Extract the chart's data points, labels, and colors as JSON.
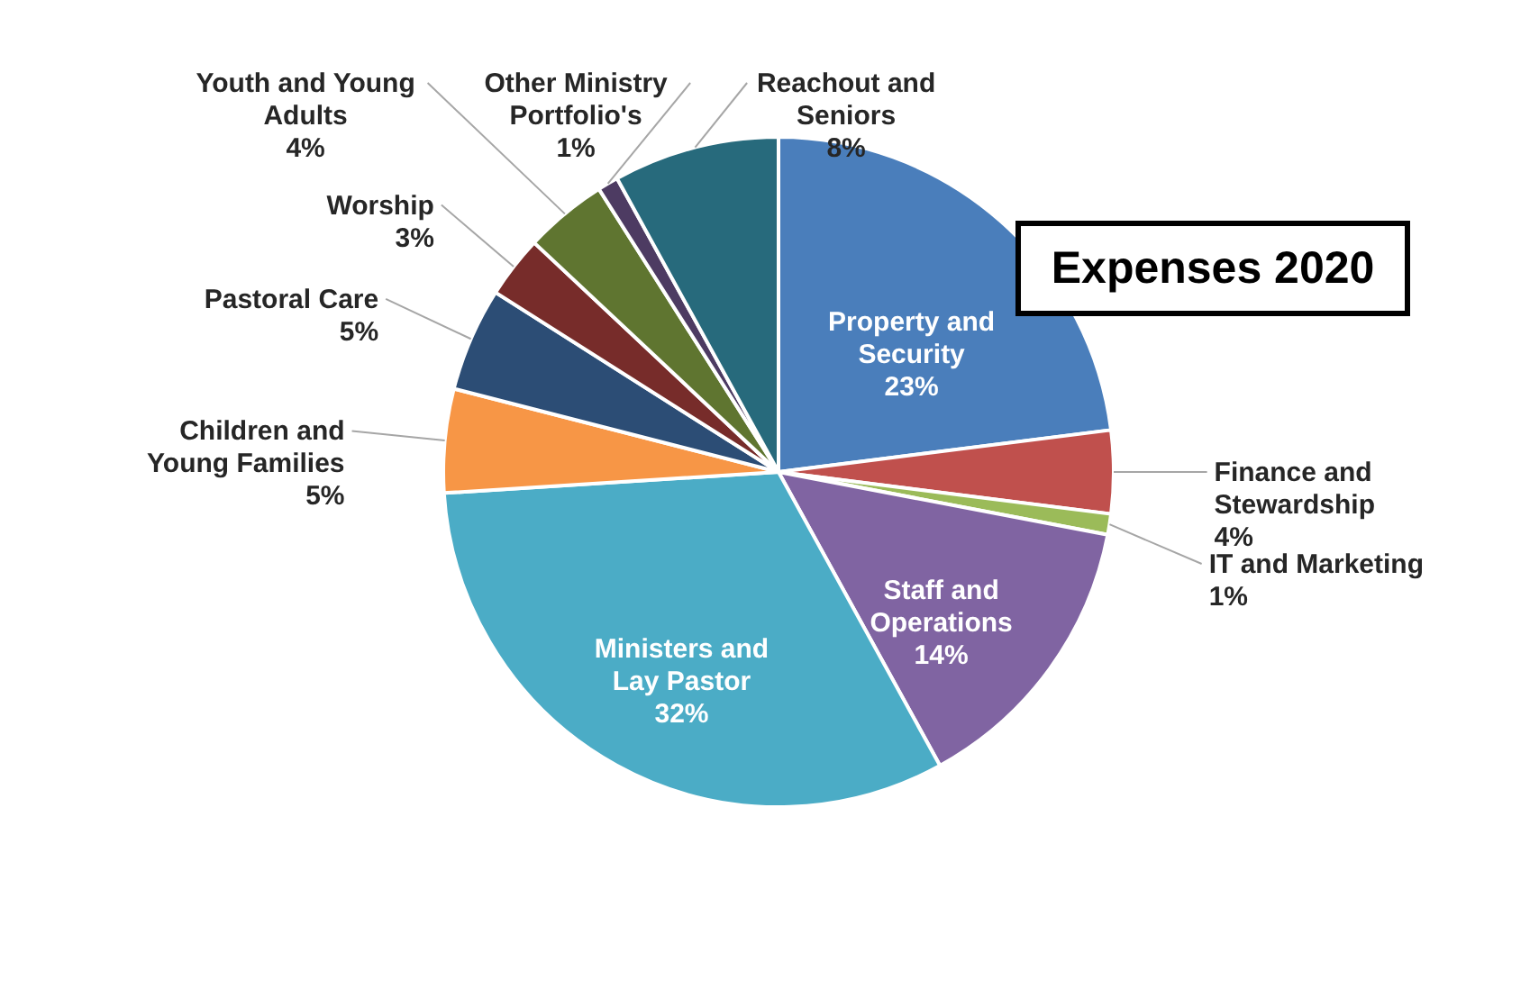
{
  "chart_data": {
    "type": "pie",
    "title": "Expenses 2020",
    "categories": [
      "Property and Security",
      "Finance and Stewardship",
      "IT and Marketing",
      "Staff and Operations",
      "Ministers and Lay Pastor",
      "Children and Young Families",
      "Pastoral Care",
      "Worship",
      "Youth and Young Adults",
      "Other Ministry Portfolio's",
      "Reachout and Seniors"
    ],
    "values": [
      23,
      4,
      1,
      14,
      32,
      5,
      5,
      3,
      4,
      1,
      8
    ],
    "value_labels": [
      "23%",
      "4%",
      "1%",
      "14%",
      "32%",
      "5%",
      "5%",
      "3%",
      "4%",
      "1%",
      "8%"
    ],
    "colors": [
      "#4a7ebb",
      "#c0504d",
      "#9bbb59",
      "#8064a2",
      "#4bacc6",
      "#f79646",
      "#2c4d75",
      "#772c2a",
      "#5f7530",
      "#4d3b62",
      "#276a7c"
    ]
  }
}
